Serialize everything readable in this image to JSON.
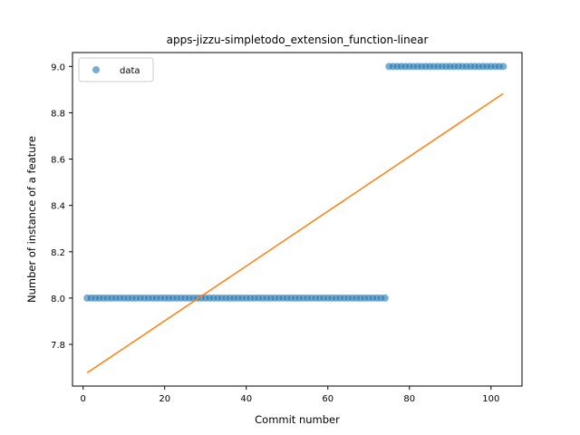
{
  "chart_data": {
    "type": "scatter",
    "title": "apps-jizzu-simpletodo_extension_function-linear",
    "xlabel": "Commit number",
    "ylabel": "Number of instance of a feature",
    "xlim": [
      -2.6,
      107.6
    ],
    "ylim": [
      7.62,
      9.06
    ],
    "xticks": [
      0,
      20,
      40,
      60,
      80,
      100
    ],
    "xtick_labels": [
      "0",
      "20",
      "40",
      "60",
      "80",
      "100"
    ],
    "yticks": [
      7.8,
      8.0,
      8.2,
      8.4,
      8.6,
      8.8,
      9.0
    ],
    "ytick_labels": [
      "7.8",
      "8.0",
      "8.2",
      "8.4",
      "8.6",
      "8.8",
      "9.0"
    ],
    "grid": false,
    "legend": {
      "placement": "upper-left",
      "entries": [
        "data"
      ]
    },
    "series": [
      {
        "name": "data",
        "kind": "scatter",
        "color": "#1f77b4",
        "x": [
          1,
          2,
          3,
          4,
          5,
          6,
          7,
          8,
          9,
          10,
          11,
          12,
          13,
          14,
          15,
          16,
          17,
          18,
          19,
          20,
          21,
          22,
          23,
          24,
          25,
          26,
          27,
          28,
          29,
          30,
          31,
          32,
          33,
          34,
          35,
          36,
          37,
          38,
          39,
          40,
          41,
          42,
          43,
          44,
          45,
          46,
          47,
          48,
          49,
          50,
          51,
          52,
          53,
          54,
          55,
          56,
          57,
          58,
          59,
          60,
          61,
          62,
          63,
          64,
          65,
          66,
          67,
          68,
          69,
          70,
          71,
          72,
          73,
          74,
          75,
          76,
          77,
          78,
          79,
          80,
          81,
          82,
          83,
          84,
          85,
          86,
          87,
          88,
          89,
          90,
          91,
          92,
          93,
          94,
          95,
          96,
          97,
          98,
          99,
          100,
          101,
          102,
          103
        ],
        "y": [
          8,
          8,
          8,
          8,
          8,
          8,
          8,
          8,
          8,
          8,
          8,
          8,
          8,
          8,
          8,
          8,
          8,
          8,
          8,
          8,
          8,
          8,
          8,
          8,
          8,
          8,
          8,
          8,
          8,
          8,
          8,
          8,
          8,
          8,
          8,
          8,
          8,
          8,
          8,
          8,
          8,
          8,
          8,
          8,
          8,
          8,
          8,
          8,
          8,
          8,
          8,
          8,
          8,
          8,
          8,
          8,
          8,
          8,
          8,
          8,
          8,
          8,
          8,
          8,
          8,
          8,
          8,
          8,
          8,
          8,
          8,
          8,
          8,
          8,
          9,
          9,
          9,
          9,
          9,
          9,
          9,
          9,
          9,
          9,
          9,
          9,
          9,
          9,
          9,
          9,
          9,
          9,
          9,
          9,
          9,
          9,
          9,
          9,
          9,
          9,
          9,
          9,
          9
        ]
      },
      {
        "kind": "line",
        "color": "#ff7f0e",
        "x": [
          1,
          103
        ],
        "y": [
          7.677,
          8.883
        ]
      }
    ]
  }
}
